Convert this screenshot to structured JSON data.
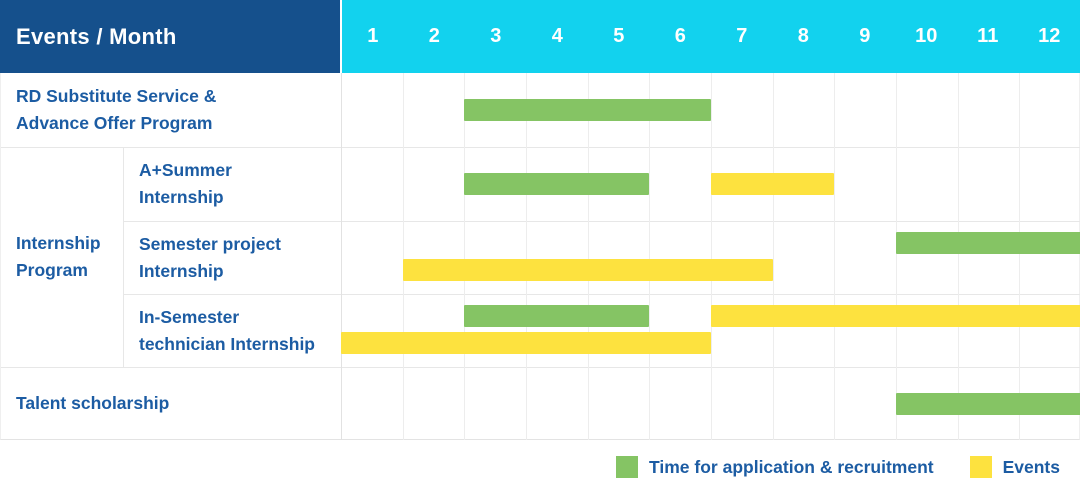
{
  "colors": {
    "header_bg": "#15508C",
    "months_bg": "#12D2EE",
    "application_bar": "#85C464",
    "event_bar": "#FDE23F",
    "label_text": "#1C5CA3",
    "header_text": "#FFFFFF"
  },
  "header": {
    "title": "Events / Month"
  },
  "group_label": {
    "name": "Internship Program",
    "lines": [
      "Internship",
      "Program"
    ]
  },
  "legend": {
    "items": [
      {
        "key": "application",
        "label": "Time for application & recruitment",
        "color": "#85C464"
      },
      {
        "key": "event",
        "label": "Events",
        "color": "#FDE23F"
      }
    ]
  },
  "chart_data": {
    "type": "bar",
    "subtype": "gantt-schedule",
    "title": "Events / Month",
    "x_unit": "month",
    "x_ticks": [
      "1",
      "2",
      "3",
      "4",
      "5",
      "6",
      "7",
      "8",
      "9",
      "10",
      "11",
      "12"
    ],
    "x_range": [
      1,
      12
    ],
    "grid": true,
    "legend_position": "bottom-right",
    "series_keys": {
      "application": "Time for application & recruitment",
      "event": "Events"
    },
    "rows": [
      {
        "event": "RD Substitute Service & Advance Offer Program",
        "group": "",
        "label_lines": [
          "RD Substitute Service &",
          "Advance Offer Program"
        ],
        "spans": [
          {
            "kind": "application",
            "start_month": 3,
            "end_month": 6,
            "band": "single"
          }
        ]
      },
      {
        "event": "A+Summer Internship",
        "group": "Internship Program",
        "label_lines": [
          "A+Summer",
          "Internship"
        ],
        "spans": [
          {
            "kind": "application",
            "start_month": 3,
            "end_month": 5,
            "band": "single"
          },
          {
            "kind": "event",
            "start_month": 7,
            "end_month": 8,
            "band": "single"
          }
        ]
      },
      {
        "event": "Semester project Internship",
        "group": "Internship Program",
        "label_lines": [
          "Semester project",
          "Internship"
        ],
        "spans": [
          {
            "kind": "application",
            "start_month": 10,
            "end_month": 12,
            "band": "top"
          },
          {
            "kind": "event",
            "start_month": 2,
            "end_month": 7,
            "band": "bottom"
          }
        ]
      },
      {
        "event": "In-Semester technician Internship",
        "group": "Internship Program",
        "label_lines": [
          "In-Semester",
          "technician Internship"
        ],
        "spans": [
          {
            "kind": "application",
            "start_month": 3,
            "end_month": 5,
            "band": "top"
          },
          {
            "kind": "event",
            "start_month": 7,
            "end_month": 12,
            "band": "top"
          },
          {
            "kind": "event",
            "start_month": 1,
            "end_month": 6,
            "band": "bottom"
          }
        ]
      },
      {
        "event": "Talent scholarship",
        "group": "",
        "label_lines": [
          "Talent scholarship"
        ],
        "spans": [
          {
            "kind": "application",
            "start_month": 10,
            "end_month": 12,
            "band": "single"
          }
        ]
      }
    ]
  }
}
